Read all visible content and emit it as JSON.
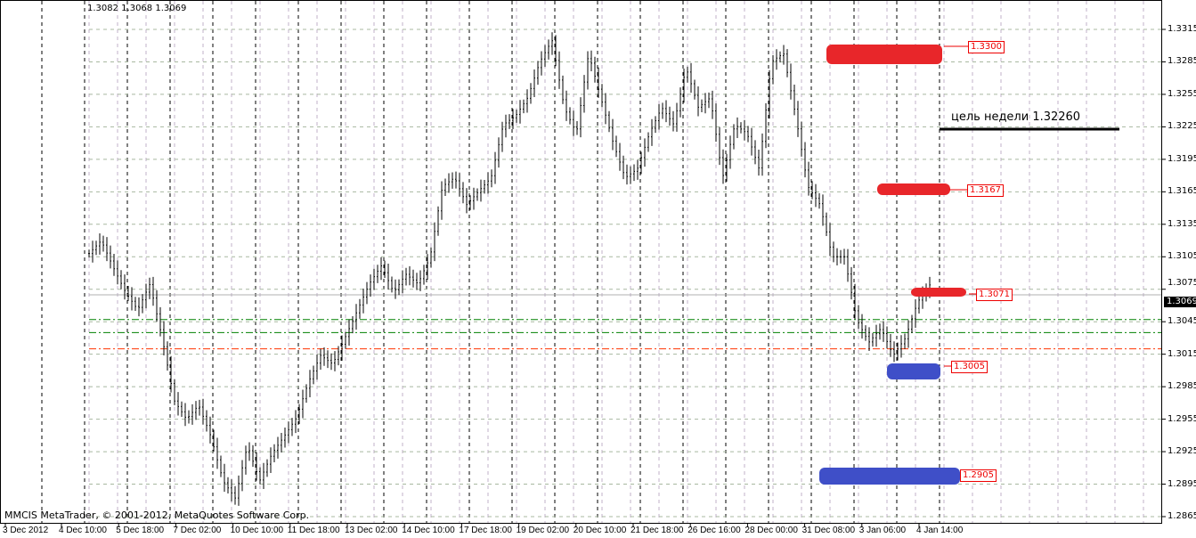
{
  "header": {
    "ohlc": "1.3082 1.3068 1.3069"
  },
  "footer": {
    "copyright": "MMCIS MetaTrader, © 2001-2012, MetaQuotes Software Corp."
  },
  "colors": {
    "bars": "#000000",
    "grid": "#c0b0c8",
    "support_green": "#008000",
    "support_red": "#ff3300",
    "mark_red": "#e8262a",
    "mark_blue": "#3f4fc8",
    "level_label": "#ee0000"
  },
  "chart_data": {
    "type": "ohlc",
    "title": "",
    "current_price": "1.3069",
    "ylim": [
      1.2865,
      1.3315
    ],
    "yticks": [
      "1.3315",
      "1.3285",
      "1.3255",
      "1.3225",
      "1.3195",
      "1.3165",
      "1.3135",
      "1.3105",
      "1.3075",
      "1.3045",
      "1.3015",
      "1.2985",
      "1.2955",
      "1.2925",
      "1.2895",
      "1.2865"
    ],
    "xticks": [
      "3 Dec 2012",
      "4 Dec 10:00",
      "5 Dec 18:00",
      "7 Dec 02:00",
      "10 Dec 10:00",
      "11 Dec 18:00",
      "13 Dec 02:00",
      "14 Dec 10:00",
      "17 Dec 18:00",
      "19 Dec 02:00",
      "20 Dec 10:00",
      "21 Dec 18:00",
      "26 Dec 16:00",
      "28 Dec 00:00",
      "31 Dec 08:00",
      "3 Jan 06:00",
      "4 Jan 14:00"
    ],
    "price_path": [
      1.3108,
      1.312,
      1.3095,
      1.3072,
      1.3056,
      1.308,
      1.303,
      1.2972,
      1.2955,
      1.2968,
      1.2939,
      1.2898,
      1.2882,
      1.2931,
      1.2898,
      1.2923,
      1.2939,
      1.2956,
      1.2989,
      1.3014,
      1.3006,
      1.303,
      1.3055,
      1.308,
      1.3097,
      1.3072,
      1.3089,
      1.308,
      1.3105,
      1.317,
      1.3178,
      1.3153,
      1.3166,
      1.3178,
      1.3227,
      1.3235,
      1.3252,
      1.3285,
      1.3305,
      1.3243,
      1.3219,
      1.3293,
      1.3252,
      1.3211,
      1.3178,
      1.3186,
      1.3219,
      1.3243,
      1.3227,
      1.328,
      1.3243,
      1.3252,
      1.3178,
      1.3227,
      1.3219,
      1.3186,
      1.3285,
      1.3293,
      1.3235,
      1.317,
      1.3153,
      1.3105,
      1.3105,
      1.3047,
      1.3026,
      1.3039,
      1.3014,
      1.303,
      1.3063,
      1.3079
    ],
    "horizontal_lines": [
      {
        "price": 1.3047,
        "style": "dash-dot",
        "color": "green"
      },
      {
        "price": 1.3035,
        "style": "dash-dot",
        "color": "green"
      },
      {
        "price": 1.302,
        "style": "dash-dot",
        "color": "red"
      }
    ],
    "levels": [
      {
        "label": "1.3300",
        "mark": "red"
      },
      {
        "label": "1.3167",
        "mark": "red"
      },
      {
        "label": "1.3071",
        "mark": "red"
      },
      {
        "label": "1.3005",
        "mark": "blue"
      },
      {
        "label": "1.2905",
        "mark": "blue"
      }
    ],
    "annotation": "цель недели 1.32260"
  }
}
